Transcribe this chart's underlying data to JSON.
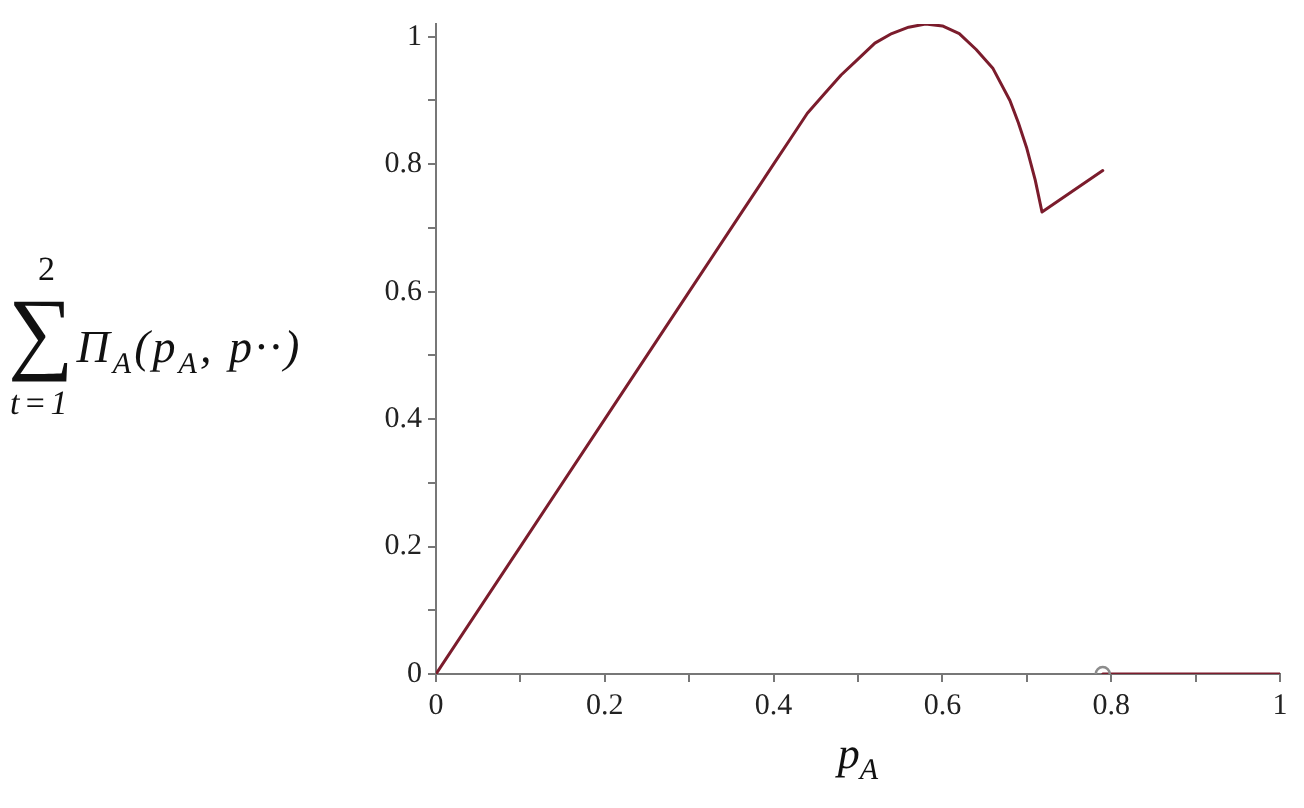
{
  "chart_data": {
    "type": "line",
    "xlabel": "p$_{A}$",
    "ylabel": "∑$_{t=1}$$^{2}$Π$_{A}$(p$_{A}$, p··)",
    "xlim": [
      0,
      1
    ],
    "ylim": [
      0,
      1.02
    ],
    "xticks": [
      0,
      {
        "value": 0.1,
        "label": null
      },
      0.2,
      {
        "value": 0.3,
        "label": null
      },
      0.4,
      {
        "value": 0.5,
        "label": null
      },
      0.6,
      {
        "value": 0.7,
        "label": null
      },
      0.8,
      {
        "value": 0.9,
        "label": null
      },
      1
    ],
    "yticks": [
      0,
      {
        "value": 0.1,
        "label": null
      },
      0.2,
      {
        "value": 0.3,
        "label": null
      },
      0.4,
      {
        "value": 0.5,
        "label": null
      },
      0.6,
      {
        "value": 0.7,
        "label": null
      },
      0.8,
      {
        "value": 0.9,
        "label": null
      },
      1
    ],
    "grid": false,
    "series": [
      {
        "color": "#7b1c2c",
        "x": [
          0,
          0.1,
          0.2,
          0.3,
          0.36,
          0.4,
          0.42,
          0.44,
          0.46,
          0.48,
          0.5,
          0.52,
          0.54,
          0.56,
          0.58,
          0.6,
          0.62,
          0.64,
          0.66,
          0.68,
          0.69,
          0.7,
          0.71,
          0.718,
          0.79
        ],
        "values": [
          0,
          0.2,
          0.4,
          0.6,
          0.72,
          0.8,
          0.84,
          0.88,
          0.91,
          0.94,
          0.965,
          0.99,
          1.005,
          1.015,
          1.02,
          1.017,
          1.005,
          0.98,
          0.95,
          0.9,
          0.865,
          0.825,
          0.775,
          0.725,
          0.79
        ]
      },
      {
        "color": "#7b1c2c",
        "x": [
          0.79,
          1
        ],
        "values": [
          0,
          0
        ]
      },
      {
        "type": "scatter",
        "marker": "circle",
        "color": "#8c8c8c",
        "x": [
          0.79
        ],
        "values": [
          0
        ]
      }
    ]
  }
}
